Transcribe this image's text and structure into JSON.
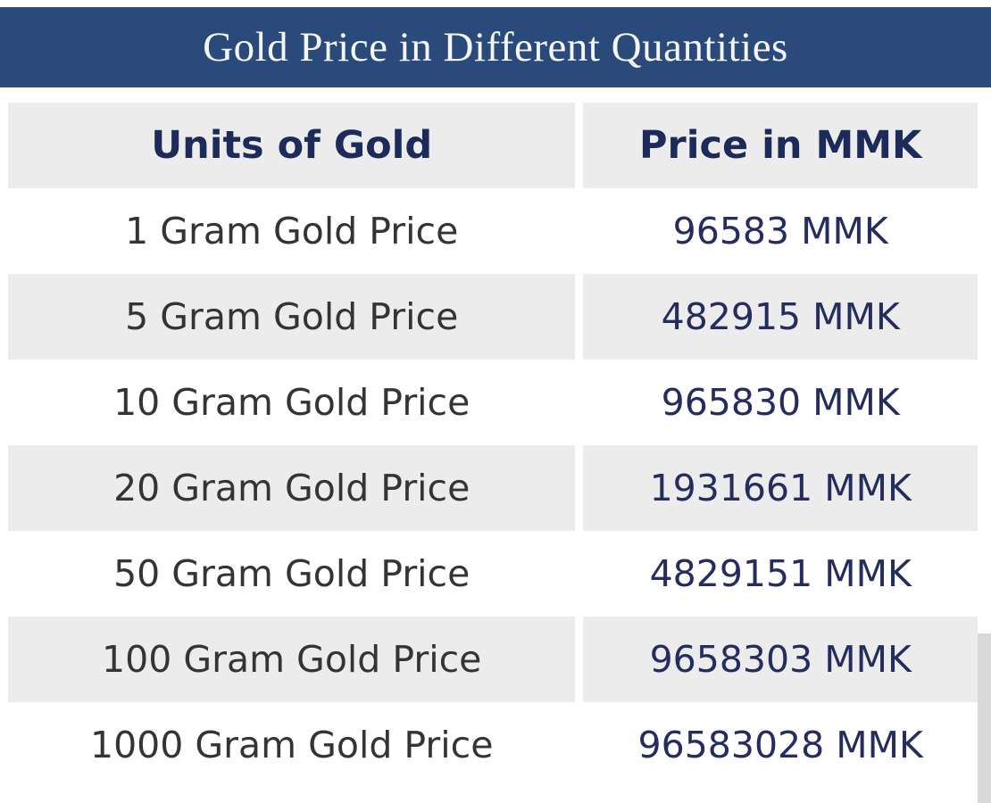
{
  "title": "Gold Price in Different Quantities",
  "colors": {
    "accent": "#2a4a7c",
    "title_text": "#f4f6f9",
    "header_text": "#1c2b5a",
    "row_alt": "#ececec",
    "unit_text": "#343434",
    "price_text": "#252c5e"
  },
  "chart_data": {
    "type": "table",
    "title": "Gold Price in Different Quantities",
    "columns": [
      "Units of Gold",
      "Price in MMK"
    ],
    "rows": [
      [
        "1 Gram Gold Price",
        "96583 MMK"
      ],
      [
        "5 Gram Gold Price",
        "482915 MMK"
      ],
      [
        "10 Gram Gold Price",
        "965830 MMK"
      ],
      [
        "20 Gram Gold Price",
        "1931661 MMK"
      ],
      [
        "50 Gram Gold Price",
        "4829151 MMK"
      ],
      [
        "100 Gram Gold Price",
        "9658303 MMK"
      ],
      [
        "1000 Gram Gold Price",
        "96583028 MMK"
      ]
    ],
    "units_gram": [
      1,
      5,
      10,
      20,
      50,
      100,
      1000
    ],
    "values_mmk": [
      96583,
      482915,
      965830,
      1931661,
      4829151,
      9658303,
      96583028
    ],
    "currency": "MMK"
  }
}
